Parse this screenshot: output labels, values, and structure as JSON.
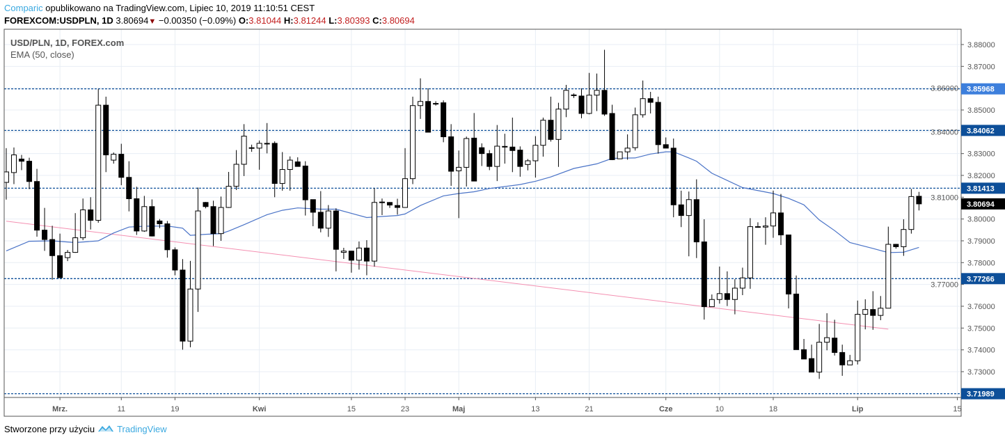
{
  "header": {
    "author": "Comparic",
    "published": "opublikowano na TradingView.com, Lipiec 10, 2019 11:10:51 CEST",
    "symbol": "FOREXCOM:USDPLN, 1D",
    "last": "3.80694",
    "change": "−0.00350 (−0.09%)",
    "direction_icon": "triangle-down",
    "o_label": "O:",
    "o": "3.81044",
    "h_label": "H:",
    "h": "3.81244",
    "l_label": "L:",
    "l": "3.80393",
    "c_label": "C:",
    "c": "3.80694"
  },
  "legend": {
    "series": "USD/PLN, 1D, FOREX.com",
    "indicator": "EMA (50, close)"
  },
  "footer": {
    "text": "Stworzone przy użyciu",
    "brand": "TradingView",
    "logo_icon": "tradingview-logo"
  },
  "colors": {
    "up_body": "#ffffff",
    "down_body": "#000000",
    "ema": "#4a73c7",
    "trendline": "#f48fb1",
    "levels": "#0d4f99",
    "level_highlight": "#3d7fdc",
    "last_price": "#000000",
    "grid": "#e8eef4",
    "brand": "#3ba9e0",
    "value_red": "#c21f1f"
  },
  "chart_data": {
    "type": "candlestick",
    "title": "USD/PLN, 1D, FOREX.com",
    "xlabel": "",
    "ylabel": "",
    "ylim": [
      3.71818,
      3.88702
    ],
    "xlim_index": [
      -0.27,
      124.5
    ],
    "grid": true,
    "y_ticks": [
      "3.88000",
      "3.87000",
      "3.86000",
      "3.85000",
      "3.84000",
      "3.83000",
      "3.82000",
      "3.81000",
      "3.80000",
      "3.79000",
      "3.78000",
      "3.77000",
      "3.76000",
      "3.75000",
      "3.74000",
      "3.73000"
    ],
    "x_ticks": [
      {
        "index": 7,
        "label": "Mrz."
      },
      {
        "index": 15,
        "label": "11"
      },
      {
        "index": 22,
        "label": "19"
      },
      {
        "index": 33,
        "label": "Kwi"
      },
      {
        "index": 45,
        "label": "15"
      },
      {
        "index": 52,
        "label": "23"
      },
      {
        "index": 59,
        "label": "Maj"
      },
      {
        "index": 69,
        "label": "13"
      },
      {
        "index": 76,
        "label": "21"
      },
      {
        "index": 86,
        "label": "Cze"
      },
      {
        "index": 93,
        "label": "10"
      },
      {
        "index": 100,
        "label": "18"
      },
      {
        "index": 111,
        "label": "Lip"
      },
      {
        "index": 124,
        "label": "15"
      }
    ],
    "levels": [
      {
        "value": 3.85968,
        "label": "3.85968",
        "highlight": true
      },
      {
        "value": 3.84062,
        "label": "3.84062"
      },
      {
        "value": 3.81413,
        "label": "3.81413"
      },
      {
        "value": 3.77266,
        "label": "3.77266"
      },
      {
        "value": 3.71989,
        "label": "3.71989"
      }
    ],
    "last_price": {
      "value": 3.80694,
      "label": "3.80694"
    },
    "trendline": {
      "from": [
        0,
        3.799
      ],
      "to": [
        115,
        3.7495
      ]
    },
    "ema_50": [
      [
        0,
        3.7854
      ],
      [
        3,
        3.7898
      ],
      [
        6,
        3.79
      ],
      [
        9,
        3.7892
      ],
      [
        12,
        3.79
      ],
      [
        14,
        3.7936
      ],
      [
        16,
        3.7963
      ],
      [
        18,
        3.7967
      ],
      [
        21,
        3.7968
      ],
      [
        23,
        3.7958
      ],
      [
        24,
        3.7925
      ],
      [
        26,
        3.793
      ],
      [
        28,
        3.7933
      ],
      [
        29,
        3.7945
      ],
      [
        31,
        3.7974
      ],
      [
        34,
        3.802
      ],
      [
        36,
        3.804
      ],
      [
        38,
        3.8051
      ],
      [
        41,
        3.8045
      ],
      [
        43,
        3.8045
      ],
      [
        47,
        3.8007
      ],
      [
        51,
        3.8016
      ],
      [
        52,
        3.8023
      ],
      [
        54,
        3.8062
      ],
      [
        57,
        3.8106
      ],
      [
        59,
        3.8117
      ],
      [
        61,
        3.8125
      ],
      [
        63,
        3.814
      ],
      [
        67,
        3.8158
      ],
      [
        69,
        3.8173
      ],
      [
        71,
        3.8193
      ],
      [
        74,
        3.8232
      ],
      [
        77,
        3.8253
      ],
      [
        79,
        3.8278
      ],
      [
        82,
        3.828
      ],
      [
        84,
        3.8298
      ],
      [
        86,
        3.8308
      ],
      [
        87,
        3.8308
      ],
      [
        89,
        3.828
      ],
      [
        90,
        3.8265
      ],
      [
        92,
        3.821
      ],
      [
        96,
        3.8144
      ],
      [
        100,
        3.8117
      ],
      [
        102,
        3.8095
      ],
      [
        104,
        3.8065
      ],
      [
        106,
        3.7996
      ],
      [
        108,
        3.7947
      ],
      [
        110,
        3.7892
      ],
      [
        113,
        3.7865
      ],
      [
        115,
        3.7846
      ],
      [
        117,
        3.7848
      ],
      [
        119,
        3.787
      ]
    ],
    "ohlc_fields": [
      "open",
      "high",
      "low",
      "close"
    ],
    "ohlc": [
      [
        3.8168,
        3.8325,
        3.8089,
        3.8216
      ],
      [
        3.8213,
        3.8328,
        3.816,
        3.8294
      ],
      [
        3.8275,
        3.8294,
        3.8224,
        3.8265
      ],
      [
        3.8265,
        3.8281,
        3.8137,
        3.8172
      ],
      [
        3.8172,
        3.823,
        3.7919,
        3.7949
      ],
      [
        3.7949,
        3.8051,
        3.7854,
        3.7906
      ],
      [
        3.7906,
        3.7969,
        3.7722,
        3.7832
      ],
      [
        3.7832,
        3.7933,
        3.7731,
        3.7731
      ],
      [
        3.7823,
        3.7858,
        3.7807,
        3.7847
      ],
      [
        3.7847,
        3.8027,
        3.7845,
        3.7914
      ],
      [
        3.7914,
        3.8094,
        3.7903,
        3.8042
      ],
      [
        3.8042,
        3.81,
        3.7952,
        3.7994
      ],
      [
        3.7994,
        3.8597,
        3.7983,
        3.8522
      ],
      [
        3.8522,
        3.8561,
        3.8215,
        3.8294
      ],
      [
        3.827,
        3.8305,
        3.8254,
        3.8297
      ],
      [
        3.8297,
        3.8345,
        3.8155,
        3.8191
      ],
      [
        3.8191,
        3.8265,
        3.8035,
        3.8093
      ],
      [
        3.8093,
        3.8148,
        3.7927,
        3.7945
      ],
      [
        3.7945,
        3.8106,
        3.7941,
        3.8057
      ],
      [
        3.8057,
        3.809,
        3.792,
        3.7922
      ],
      [
        3.7991,
        3.8,
        3.7958,
        3.7978
      ],
      [
        3.7978,
        3.7991,
        3.7823,
        3.7859
      ],
      [
        3.7859,
        3.787,
        3.7742,
        3.7766
      ],
      [
        3.7766,
        3.7816,
        3.7401,
        3.744
      ],
      [
        3.744,
        3.7808,
        3.7412,
        3.7679
      ],
      [
        3.7679,
        3.8144,
        3.7574,
        3.8037
      ],
      [
        3.8076,
        3.8078,
        3.8049,
        3.8057
      ],
      [
        3.8057,
        3.8084,
        3.7876,
        3.7933
      ],
      [
        3.7933,
        3.8103,
        3.79,
        3.8053
      ],
      [
        3.8053,
        3.8216,
        3.8051,
        3.815
      ],
      [
        3.815,
        3.8316,
        3.8133,
        3.8251
      ],
      [
        3.8251,
        3.8435,
        3.8197,
        3.838
      ],
      [
        3.8327,
        3.8341,
        3.8308,
        3.8327
      ],
      [
        3.8325,
        3.836,
        3.8226,
        3.8347
      ],
      [
        3.8347,
        3.844,
        3.8301,
        3.8347
      ],
      [
        3.8347,
        3.8356,
        3.81,
        3.8163
      ],
      [
        3.8163,
        3.8307,
        3.813,
        3.8227
      ],
      [
        3.8227,
        3.8287,
        3.813,
        3.827
      ],
      [
        3.8262,
        3.8283,
        3.8241,
        3.8241
      ],
      [
        3.8243,
        3.8265,
        3.8016,
        3.8088
      ],
      [
        3.8089,
        3.8089,
        3.7967,
        3.8031
      ],
      [
        3.8031,
        3.8128,
        3.7939,
        3.7958
      ],
      [
        3.7958,
        3.8064,
        3.7918,
        3.8037
      ],
      [
        3.8037,
        3.8049,
        3.776,
        3.7861
      ],
      [
        3.7847,
        3.7868,
        3.7817,
        3.7853
      ],
      [
        3.7853,
        3.7853,
        3.7754,
        3.7811
      ],
      [
        3.7811,
        3.7897,
        3.7768,
        3.7867
      ],
      [
        3.7867,
        3.7903,
        3.7742,
        3.7807
      ],
      [
        3.7807,
        3.8141,
        3.7782,
        3.8076
      ],
      [
        3.8078,
        3.8094,
        3.8018,
        3.8078
      ],
      [
        3.8076,
        3.8078,
        3.8051,
        3.8064
      ],
      [
        3.8062,
        3.8093,
        3.802,
        3.8053
      ],
      [
        3.8053,
        3.8325,
        3.8053,
        3.8185
      ],
      [
        3.8185,
        3.8561,
        3.816,
        3.852
      ],
      [
        3.852,
        3.8645,
        3.8459,
        3.8539
      ],
      [
        3.8539,
        3.8599,
        3.8398,
        3.8398
      ],
      [
        3.853,
        3.854,
        3.852,
        3.8528
      ],
      [
        3.8533,
        3.8544,
        3.8352,
        3.8377
      ],
      [
        3.8377,
        3.8435,
        3.8152,
        3.8219
      ],
      [
        3.8221,
        3.8314,
        3.8004,
        3.8237
      ],
      [
        3.8237,
        3.8378,
        3.8149,
        3.8369
      ],
      [
        3.8371,
        3.8486,
        3.8174,
        3.8174
      ],
      [
        3.8327,
        3.8347,
        3.8243,
        3.83
      ],
      [
        3.83,
        3.8316,
        3.8224,
        3.8241
      ],
      [
        3.8241,
        3.8431,
        3.8174,
        3.8334
      ],
      [
        3.8333,
        3.8391,
        3.8254,
        3.8333
      ],
      [
        3.833,
        3.8465,
        3.8215,
        3.8314
      ],
      [
        3.8316,
        3.8333,
        3.8194,
        3.8241
      ],
      [
        3.825,
        3.8275,
        3.8223,
        3.8267
      ],
      [
        3.8267,
        3.838,
        3.819,
        3.8338
      ],
      [
        3.8338,
        3.8465,
        3.8286,
        3.8453
      ],
      [
        3.8453,
        3.8561,
        3.8355,
        3.8365
      ],
      [
        3.8365,
        3.8533,
        3.8239,
        3.8504
      ],
      [
        3.8504,
        3.8615,
        3.8467,
        3.859
      ],
      [
        3.8569,
        3.8576,
        3.8555,
        3.8569
      ],
      [
        3.8564,
        3.8599,
        3.8462,
        3.8484
      ],
      [
        3.8484,
        3.867,
        3.848,
        3.8568
      ],
      [
        3.8568,
        3.8667,
        3.8495,
        3.859
      ],
      [
        3.859,
        3.8776,
        3.8473,
        3.8481
      ],
      [
        3.8484,
        3.8524,
        3.827,
        3.8272
      ],
      [
        3.8276,
        3.8308,
        3.8276,
        3.8308
      ],
      [
        3.8308,
        3.8388,
        3.8272,
        3.8325
      ],
      [
        3.8327,
        3.8511,
        3.8314,
        3.8478
      ],
      [
        3.8478,
        3.8635,
        3.8465,
        3.8552
      ],
      [
        3.8552,
        3.8583,
        3.8484,
        3.8535
      ],
      [
        3.8535,
        3.8561,
        3.83,
        3.8341
      ],
      [
        3.8341,
        3.8374,
        3.8325,
        3.8325
      ],
      [
        3.8325,
        3.8369,
        3.8008,
        3.8065
      ],
      [
        3.8065,
        3.813,
        3.7963,
        3.8016
      ],
      [
        3.8016,
        3.8126,
        3.7829,
        3.8089
      ],
      [
        3.8089,
        3.8182,
        3.7821,
        3.7895
      ],
      [
        3.7895,
        3.7999,
        3.7539,
        3.7598
      ],
      [
        3.7598,
        3.7654,
        3.7598,
        3.7631
      ],
      [
        3.7631,
        3.7782,
        3.7612,
        3.7658
      ],
      [
        3.7658,
        3.776,
        3.7601,
        3.7631
      ],
      [
        3.7631,
        3.7724,
        3.7563,
        3.7683
      ],
      [
        3.7683,
        3.7777,
        3.7651,
        3.773
      ],
      [
        3.773,
        3.8004,
        3.768,
        3.7965
      ],
      [
        3.7965,
        3.7985,
        3.796,
        3.7965
      ],
      [
        3.7963,
        3.8008,
        3.7882,
        3.7968
      ],
      [
        3.7968,
        3.813,
        3.7914,
        3.8028
      ],
      [
        3.8028,
        3.8115,
        3.7881,
        3.7927
      ],
      [
        3.7927,
        3.7927,
        3.759,
        3.7656
      ],
      [
        3.7656,
        3.7741,
        3.7401,
        3.7401
      ],
      [
        3.7401,
        3.745,
        3.7358,
        3.7358
      ],
      [
        3.736,
        3.7424,
        3.7298,
        3.7298
      ],
      [
        3.7298,
        3.7519,
        3.7267,
        3.7435
      ],
      [
        3.7435,
        3.7568,
        3.7398,
        3.7456
      ],
      [
        3.7454,
        3.7538,
        3.7374,
        3.7388
      ],
      [
        3.7388,
        3.7424,
        3.7281,
        3.7331
      ],
      [
        3.7331,
        3.7377,
        3.7331,
        3.735
      ],
      [
        3.735,
        3.7626,
        3.7333,
        3.7563
      ],
      [
        3.7563,
        3.7632,
        3.7494,
        3.7585
      ],
      [
        3.7585,
        3.7669,
        3.7492,
        3.7558
      ],
      [
        3.7558,
        3.7647,
        3.7536,
        3.7591
      ],
      [
        3.7591,
        3.7965,
        3.7591,
        3.7884
      ],
      [
        3.7884,
        3.7886,
        3.7864,
        3.7873
      ],
      [
        3.7873,
        3.7999,
        3.7831,
        3.7952
      ],
      [
        3.7952,
        3.8138,
        3.7933,
        3.8103
      ],
      [
        3.81044,
        3.81244,
        3.80393,
        3.80694
      ]
    ]
  }
}
